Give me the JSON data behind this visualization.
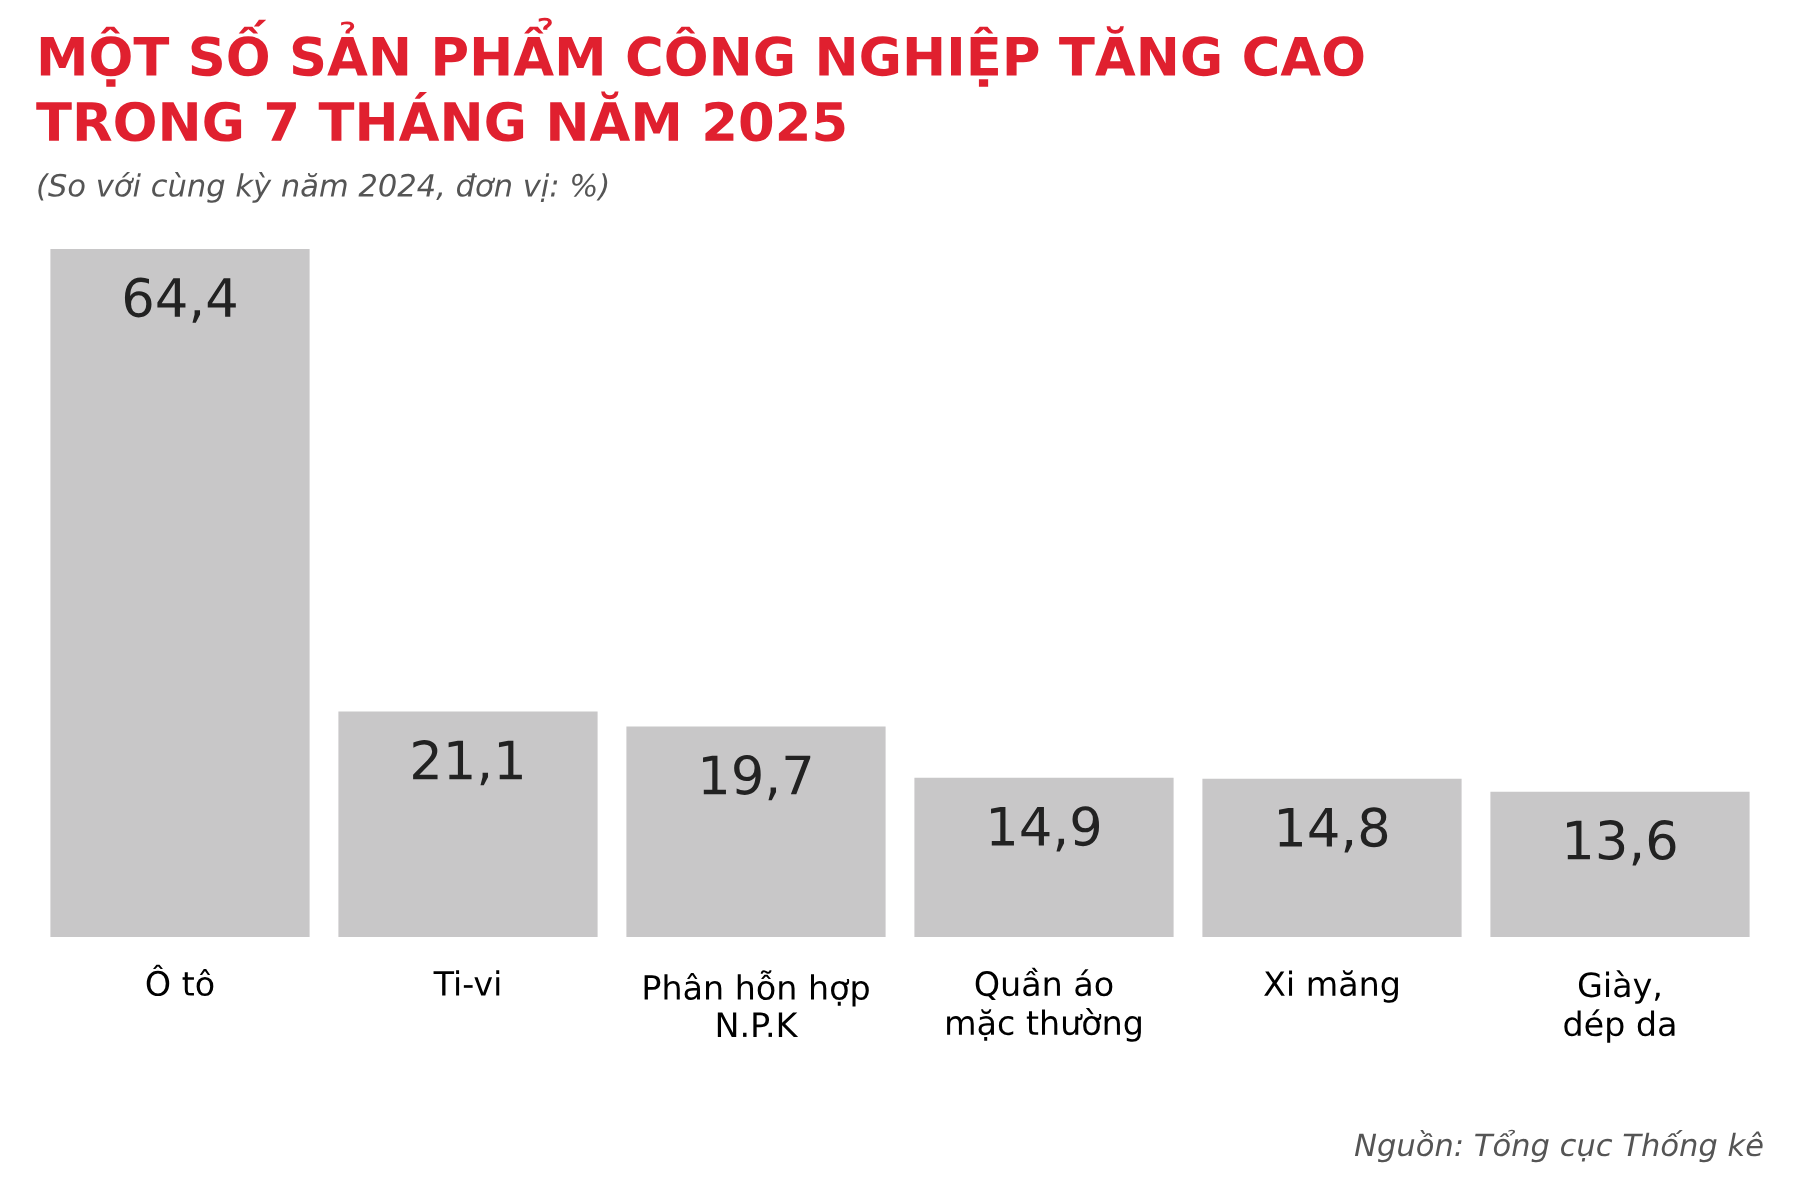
{
  "chart_data": {
    "type": "bar",
    "title": "MỘT SỐ SẢN PHẨM CÔNG NGHIỆP TĂNG CAO\nTRONG 7 THÁNG NĂM 2025",
    "subtitle": "(So với cùng kỳ năm 2024, đơn vị: %)",
    "categories": [
      "Ô tô",
      "Ti-vi",
      "Phân hỗn hợp\nN.P.K",
      "Quần áo\nmặc thường",
      "Xi măng",
      "Giày,\ndép da"
    ],
    "values": [
      64.4,
      21.1,
      19.7,
      14.9,
      14.8,
      13.6
    ],
    "color": "#c8c7c8",
    "value_labels": [
      "64,4",
      "21,1",
      "19,7",
      "14,9",
      "14,8",
      "13,6"
    ],
    "annotations": [
      "Nguồn: Tổng cục Thống kê"
    ]
  }
}
